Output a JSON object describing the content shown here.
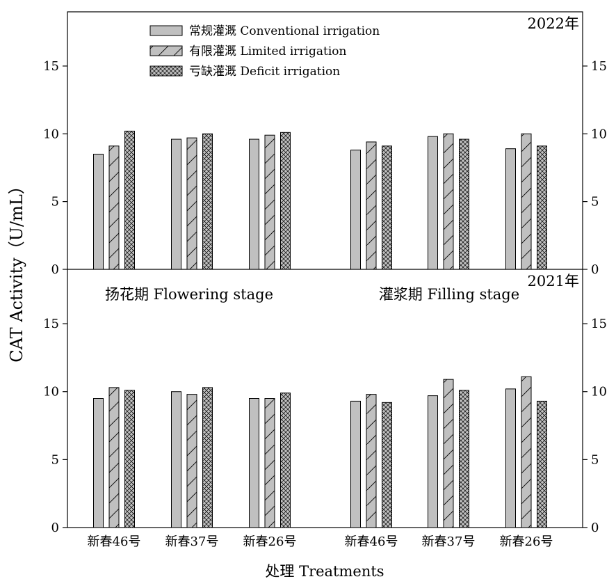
{
  "chart_data": {
    "type": "bar",
    "ylabel": "CAT Activity（U/mL）",
    "xlabel": "处理 Treatments",
    "ylim": [
      0,
      19
    ],
    "yticks": [
      0,
      5,
      10,
      15
    ],
    "legend_placement": "top-center",
    "series": [
      {
        "name": "常规灌溉  Conventional irrigation",
        "pattern": "solid",
        "color": "#c0c0c0"
      },
      {
        "name": "有限灌溉  Limited irrigation",
        "pattern": "diagonal",
        "color": "#c0c0c0"
      },
      {
        "name": "亏缺灌溉  Deficit irrigation",
        "pattern": "crosshatch",
        "color": "#c0c0c0"
      }
    ],
    "stages": [
      "扬花期  Flowering stage",
      "灌浆期  Filling stage"
    ],
    "categories": [
      "新春46号",
      "新春37号",
      "新春26号",
      "新春46号",
      "新春37号",
      "新春26号"
    ],
    "panels": [
      {
        "year": "2022年",
        "values": [
          [
            8.5,
            9.1,
            10.2
          ],
          [
            9.6,
            9.7,
            10.0
          ],
          [
            9.6,
            9.9,
            10.1
          ],
          [
            8.8,
            9.4,
            9.1
          ],
          [
            9.8,
            10.0,
            9.6
          ],
          [
            8.9,
            10.0,
            9.1
          ]
        ]
      },
      {
        "year": "2021年",
        "values": [
          [
            9.5,
            10.3,
            10.1
          ],
          [
            10.0,
            9.8,
            10.3
          ],
          [
            9.5,
            9.5,
            9.9
          ],
          [
            9.3,
            9.8,
            9.2
          ],
          [
            9.7,
            10.9,
            10.1
          ],
          [
            10.2,
            11.1,
            9.3
          ]
        ]
      }
    ]
  }
}
